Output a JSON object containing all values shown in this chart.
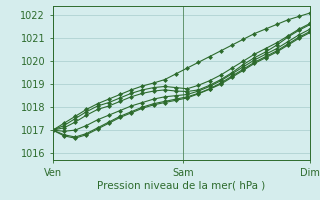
{
  "title": "",
  "xlabel": "Pression niveau de la mer( hPa )",
  "ylabel": "",
  "bg_color": "#d5eded",
  "grid_color": "#a8cccc",
  "line_color": "#2d6b2d",
  "marker_color": "#2d6b2d",
  "tick_label_color": "#2d6b2d",
  "ylim": [
    1015.7,
    1022.4
  ],
  "yticks": [
    1016,
    1017,
    1018,
    1019,
    1020,
    1021,
    1022
  ],
  "xtick_positions": [
    0,
    48,
    95
  ],
  "xtick_labels": [
    "Ven",
    "Sam",
    "Dim"
  ],
  "total_hours": 95,
  "series": [
    [
      1017.0,
      1017.3,
      1017.6,
      1017.9,
      1018.15,
      1018.35,
      1018.55,
      1018.75,
      1018.92,
      1019.05,
      1019.2,
      1019.45,
      1019.7,
      1019.95,
      1020.2,
      1020.45,
      1020.7,
      1020.95,
      1021.2,
      1021.4,
      1021.6,
      1021.8,
      1021.95,
      1022.1
    ],
    [
      1017.0,
      1017.2,
      1017.5,
      1017.8,
      1018.05,
      1018.2,
      1018.4,
      1018.6,
      1018.75,
      1018.85,
      1018.9,
      1018.85,
      1018.8,
      1018.95,
      1019.15,
      1019.4,
      1019.7,
      1020.0,
      1020.3,
      1020.55,
      1020.8,
      1021.1,
      1021.4,
      1021.65
    ],
    [
      1017.0,
      1017.1,
      1017.35,
      1017.65,
      1017.9,
      1018.05,
      1018.25,
      1018.45,
      1018.6,
      1018.7,
      1018.75,
      1018.7,
      1018.68,
      1018.75,
      1018.95,
      1019.2,
      1019.5,
      1019.85,
      1020.15,
      1020.4,
      1020.7,
      1021.05,
      1021.35,
      1021.6
    ],
    [
      1017.0,
      1016.95,
      1017.0,
      1017.2,
      1017.45,
      1017.65,
      1017.85,
      1018.05,
      1018.2,
      1018.35,
      1018.45,
      1018.5,
      1018.55,
      1018.7,
      1018.9,
      1019.15,
      1019.45,
      1019.75,
      1020.05,
      1020.3,
      1020.55,
      1020.85,
      1021.15,
      1021.4
    ],
    [
      1017.0,
      1016.8,
      1016.7,
      1016.85,
      1017.1,
      1017.35,
      1017.6,
      1017.8,
      1018.0,
      1018.15,
      1018.25,
      1018.35,
      1018.45,
      1018.6,
      1018.8,
      1019.05,
      1019.35,
      1019.65,
      1019.95,
      1020.2,
      1020.45,
      1020.75,
      1021.05,
      1021.3
    ],
    [
      1017.0,
      1016.75,
      1016.65,
      1016.8,
      1017.05,
      1017.3,
      1017.55,
      1017.75,
      1017.95,
      1018.1,
      1018.2,
      1018.3,
      1018.4,
      1018.58,
      1018.78,
      1019.0,
      1019.3,
      1019.6,
      1019.9,
      1020.15,
      1020.4,
      1020.7,
      1021.0,
      1021.25
    ]
  ]
}
